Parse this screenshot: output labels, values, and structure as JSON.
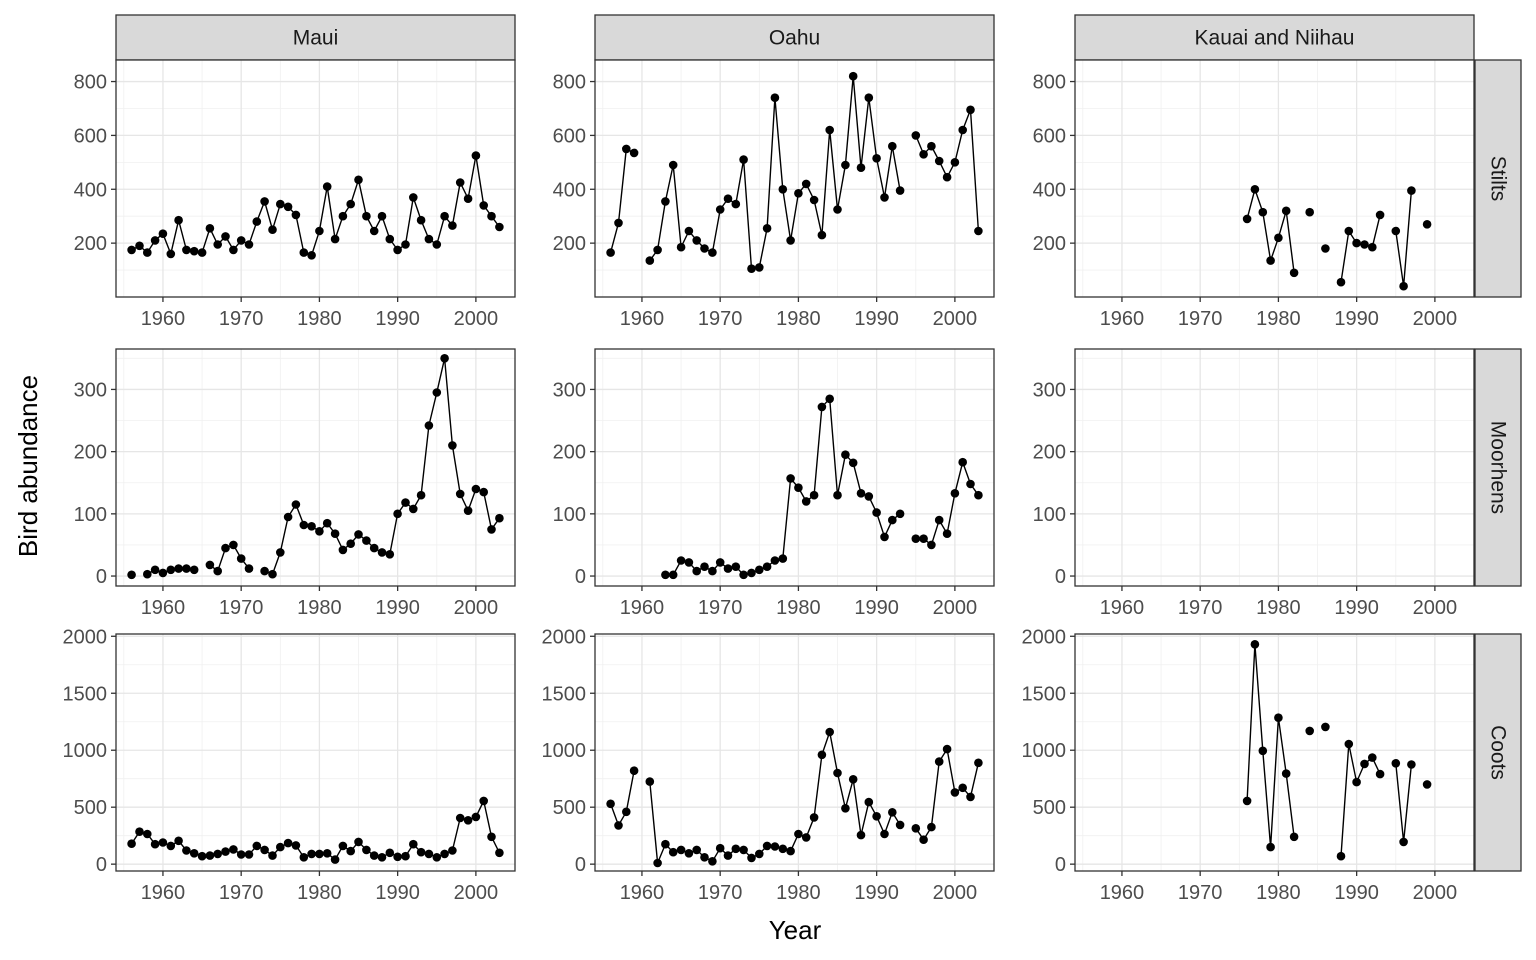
{
  "chart_data": {
    "type": "line",
    "xlabel": "Year",
    "ylabel": "Bird abundance",
    "facet_columns": [
      "Maui",
      "Oahu",
      "Kauai and Niihau"
    ],
    "facet_rows": [
      "Stilts",
      "Moorhens",
      "Coots"
    ],
    "xlim": [
      1954,
      2005
    ],
    "x_ticks": [
      1960,
      1970,
      1980,
      1990,
      2000
    ],
    "rows": {
      "Stilts": {
        "ylim": [
          0,
          880
        ],
        "y_ticks": [
          200,
          400,
          600,
          800
        ]
      },
      "Moorhens": {
        "ylim": [
          -16,
          365
        ],
        "y_ticks": [
          0,
          100,
          200,
          300
        ]
      },
      "Coots": {
        "ylim": [
          -60,
          2020
        ],
        "y_ticks": [
          0,
          500,
          1000,
          1500,
          2000
        ]
      }
    },
    "grid": true,
    "marker": "point",
    "series": [
      {
        "island": "Maui",
        "species": "Stilts",
        "x": [
          1956,
          1957,
          1958,
          1959,
          1960,
          1961,
          1962,
          1963,
          1964,
          1965,
          1966,
          1967,
          1968,
          1969,
          1970,
          1971,
          1972,
          1973,
          1974,
          1975,
          1976,
          1977,
          1978,
          1979,
          1980,
          1981,
          1982,
          1983,
          1984,
          1985,
          1986,
          1987,
          1988,
          1989,
          1990,
          1991,
          1992,
          1993,
          1994,
          1995,
          1996,
          1997,
          1998,
          1999,
          2000,
          2001,
          2002,
          2003
        ],
        "y": [
          175,
          190,
          165,
          210,
          235,
          160,
          285,
          175,
          170,
          165,
          255,
          195,
          225,
          175,
          210,
          195,
          280,
          355,
          250,
          345,
          335,
          305,
          165,
          155,
          245,
          410,
          215,
          300,
          345,
          435,
          300,
          245,
          300,
          215,
          175,
          195,
          370,
          285,
          215,
          195,
          300,
          265,
          425,
          365,
          525,
          340,
          300,
          260
        ]
      },
      {
        "island": "Oahu",
        "species": "Stilts",
        "x": [
          1956,
          1957,
          1958,
          1959,
          null,
          1961,
          1962,
          1963,
          1964,
          1965,
          1966,
          1967,
          1968,
          1969,
          1970,
          1971,
          1972,
          1973,
          1974,
          1975,
          1976,
          1977,
          1978,
          1979,
          1980,
          1981,
          1982,
          1983,
          1984,
          1985,
          1986,
          1987,
          1988,
          1989,
          1990,
          1991,
          1992,
          1993,
          null,
          1995,
          1996,
          1997,
          1998,
          1999,
          2000,
          2001,
          2002,
          2003
        ],
        "y": [
          165,
          275,
          550,
          535,
          null,
          135,
          175,
          355,
          490,
          185,
          245,
          210,
          180,
          165,
          325,
          365,
          345,
          510,
          105,
          110,
          255,
          740,
          400,
          210,
          385,
          420,
          360,
          230,
          620,
          325,
          490,
          820,
          480,
          740,
          515,
          370,
          560,
          395,
          null,
          600,
          530,
          560,
          505,
          445,
          500,
          620,
          695,
          245
        ]
      },
      {
        "island": "Kauai and Niihau",
        "species": "Stilts",
        "x": [
          1976,
          1977,
          1978,
          1979,
          1980,
          1981,
          1982,
          null,
          1984,
          null,
          1986,
          null,
          1988,
          1989,
          1990,
          1991,
          1992,
          1993,
          null,
          1995,
          1996,
          1997,
          null,
          1999
        ],
        "y": [
          290,
          400,
          315,
          135,
          220,
          320,
          90,
          null,
          315,
          null,
          180,
          null,
          55,
          245,
          200,
          195,
          185,
          305,
          null,
          245,
          40,
          395,
          null,
          270
        ]
      },
      {
        "island": "Maui",
        "species": "Moorhens",
        "x": [
          1956,
          null,
          1958,
          1959,
          1960,
          1961,
          1962,
          1963,
          1964,
          null,
          1966,
          1967,
          1968,
          1969,
          1970,
          1971,
          null,
          1973,
          1974,
          1975,
          1976,
          1977,
          1978,
          1979,
          1980,
          1981,
          1982,
          1983,
          1984,
          1985,
          1986,
          1987,
          1988,
          1989,
          1990,
          1991,
          1992,
          1993,
          1994,
          1995,
          1996,
          1997,
          1998,
          1999,
          2000,
          2001,
          2002,
          2003
        ],
        "y": [
          2,
          null,
          3,
          10,
          5,
          10,
          12,
          12,
          10,
          null,
          18,
          8,
          45,
          50,
          28,
          12,
          null,
          8,
          3,
          38,
          95,
          115,
          82,
          80,
          72,
          85,
          68,
          42,
          52,
          67,
          57,
          45,
          38,
          35,
          100,
          118,
          108,
          130,
          242,
          295,
          350,
          210,
          132,
          105,
          140,
          135,
          75,
          93
        ]
      },
      {
        "island": "Oahu",
        "species": "Moorhens",
        "x": [
          1963,
          1964,
          1965,
          1966,
          1967,
          1968,
          1969,
          1970,
          1971,
          1972,
          1973,
          1974,
          1975,
          1976,
          1977,
          1978,
          1979,
          1980,
          1981,
          1982,
          1983,
          1984,
          1985,
          1986,
          1987,
          1988,
          1989,
          1990,
          1991,
          1992,
          1993,
          null,
          1995,
          1996,
          1997,
          1998,
          1999,
          2000,
          2001,
          2002,
          2003
        ],
        "y": [
          2,
          2,
          25,
          22,
          8,
          15,
          8,
          22,
          12,
          15,
          2,
          5,
          10,
          15,
          25,
          28,
          157,
          142,
          120,
          130,
          272,
          285,
          130,
          195,
          182,
          133,
          128,
          102,
          63,
          90,
          100,
          null,
          60,
          60,
          50,
          90,
          68,
          133,
          183,
          148,
          130
        ]
      },
      {
        "island": "Maui",
        "species": "Coots",
        "x": [
          1956,
          1957,
          1958,
          1959,
          1960,
          1961,
          1962,
          1963,
          1964,
          1965,
          1966,
          1967,
          1968,
          1969,
          1970,
          1971,
          1972,
          1973,
          1974,
          1975,
          1976,
          1977,
          1978,
          1979,
          1980,
          1981,
          1982,
          1983,
          1984,
          1985,
          1986,
          1987,
          1988,
          1989,
          1990,
          1991,
          1992,
          1993,
          1994,
          1995,
          1996,
          1997,
          1998,
          1999,
          2000,
          2001,
          2002,
          2003
        ],
        "y": [
          180,
          285,
          265,
          175,
          190,
          160,
          205,
          120,
          95,
          70,
          75,
          90,
          110,
          130,
          85,
          85,
          160,
          125,
          75,
          150,
          185,
          165,
          60,
          90,
          90,
          95,
          40,
          160,
          115,
          195,
          125,
          75,
          60,
          100,
          65,
          70,
          175,
          105,
          90,
          60,
          90,
          120,
          405,
          385,
          415,
          555,
          240,
          100
        ]
      },
      {
        "island": "Oahu",
        "species": "Coots",
        "x": [
          1956,
          1957,
          1958,
          1959,
          null,
          1961,
          1962,
          1963,
          1964,
          1965,
          1966,
          1967,
          1968,
          1969,
          1970,
          1971,
          1972,
          1973,
          1974,
          1975,
          1976,
          1977,
          1978,
          1979,
          1980,
          1981,
          1982,
          1983,
          1984,
          1985,
          1986,
          1987,
          1988,
          1989,
          1990,
          1991,
          1992,
          1993,
          null,
          1995,
          1996,
          1997,
          1998,
          1999,
          2000,
          2001,
          2002,
          2003
        ],
        "y": [
          530,
          340,
          460,
          820,
          null,
          725,
          10,
          175,
          105,
          125,
          95,
          125,
          60,
          25,
          140,
          75,
          135,
          125,
          55,
          90,
          160,
          155,
          135,
          115,
          265,
          235,
          410,
          960,
          1160,
          800,
          490,
          745,
          255,
          545,
          420,
          265,
          455,
          345,
          null,
          315,
          215,
          325,
          900,
          1010,
          630,
          670,
          590,
          890
        ]
      },
      {
        "island": "Kauai and Niihau",
        "species": "Coots",
        "x": [
          1976,
          1977,
          1978,
          1979,
          1980,
          1981,
          1982,
          null,
          1984,
          null,
          1986,
          null,
          1988,
          1989,
          1990,
          1991,
          1992,
          1993,
          null,
          1995,
          1996,
          1997,
          null,
          1999
        ],
        "y": [
          555,
          1930,
          995,
          150,
          1285,
          795,
          240,
          null,
          1170,
          null,
          1205,
          null,
          70,
          1055,
          720,
          880,
          935,
          790,
          null,
          885,
          195,
          875,
          null,
          700
        ]
      }
    ]
  }
}
